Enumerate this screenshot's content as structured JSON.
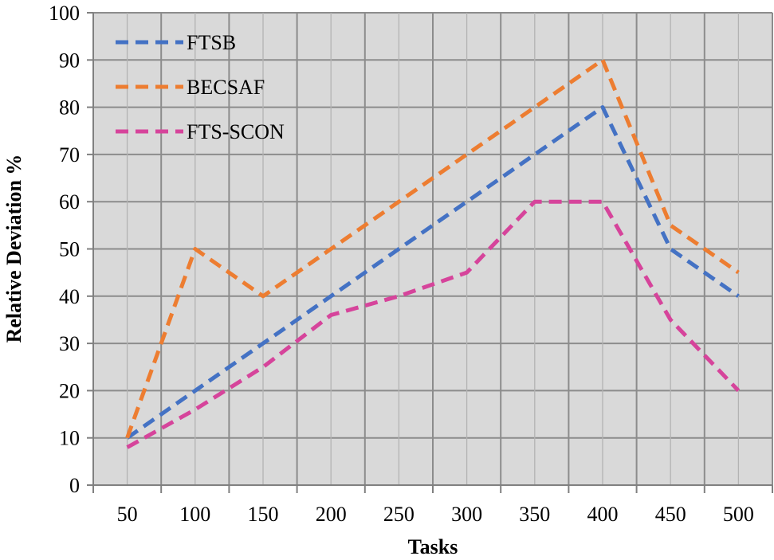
{
  "chart_data": {
    "type": "line",
    "title": "",
    "xlabel": "Tasks",
    "ylabel": "Relative Deviation %",
    "categories": [
      "50",
      "100",
      "150",
      "200",
      "250",
      "300",
      "350",
      "400",
      "450",
      "500"
    ],
    "ylim": [
      0,
      100
    ],
    "yticks": [
      "0",
      "10",
      "20",
      "30",
      "40",
      "50",
      "60",
      "70",
      "80",
      "90",
      "100"
    ],
    "grid": true,
    "legend_position": "top-left",
    "plot_background": "#d9d9d9",
    "grid_color": "#8c8c8c",
    "series": [
      {
        "name": "FTSB",
        "color": "#4472c4",
        "values": [
          10,
          20,
          30,
          40,
          50,
          60,
          70,
          80,
          50,
          40
        ]
      },
      {
        "name": "BECSAF",
        "color": "#ed7d31",
        "values": [
          10,
          50,
          40,
          50,
          60,
          70,
          80,
          90,
          55,
          45
        ]
      },
      {
        "name": "FTS-SCON",
        "color": "#d6449b",
        "values": [
          8,
          16,
          25,
          36,
          40,
          45,
          60,
          60,
          35,
          20
        ]
      }
    ]
  }
}
